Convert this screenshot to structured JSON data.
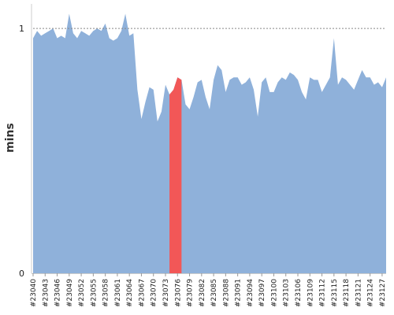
{
  "chart_data": {
    "type": "area",
    "title": "",
    "xlabel": "",
    "ylabel": "mins",
    "ylim": [
      0,
      1.1
    ],
    "yticks": [
      0,
      1
    ],
    "reference_line": {
      "value": 1,
      "style": "dotted"
    },
    "grid": false,
    "legend": "none",
    "colors": {
      "area": "#8fb1da",
      "highlight": "#f25757",
      "reference": "#888888",
      "axis": "#cccccc"
    },
    "x_tick_labels": [
      "#23040",
      "#23043",
      "#23046",
      "#23049",
      "#23052",
      "#23055",
      "#23058",
      "#23061",
      "#23064",
      "#23067",
      "#23070",
      "#23073",
      "#23076",
      "#23079",
      "#23082",
      "#23085",
      "#23088",
      "#23091",
      "#23094",
      "#23097",
      "#23100",
      "#23103",
      "#23106",
      "#23109",
      "#23112",
      "#23115",
      "#23118",
      "#23121",
      "#23124",
      "#23127"
    ],
    "x": [
      23040,
      23041,
      23042,
      23043,
      23044,
      23045,
      23046,
      23047,
      23048,
      23049,
      23050,
      23051,
      23052,
      23053,
      23054,
      23055,
      23056,
      23057,
      23058,
      23059,
      23060,
      23061,
      23062,
      23063,
      23064,
      23065,
      23066,
      23067,
      23068,
      23069,
      23070,
      23071,
      23072,
      23073,
      23074,
      23075,
      23076,
      23077,
      23078,
      23079,
      23080,
      23081,
      23082,
      23083,
      23084,
      23085,
      23086,
      23087,
      23088,
      23089,
      23090,
      23091,
      23092,
      23093,
      23094,
      23095,
      23096,
      23097,
      23098,
      23099,
      23100,
      23101,
      23102,
      23103,
      23104,
      23105,
      23106,
      23107,
      23108,
      23109,
      23110,
      23111,
      23112,
      23113,
      23114,
      23115,
      23116,
      23117,
      23118,
      23119,
      23120,
      23121,
      23122,
      23123,
      23124,
      23125,
      23126,
      23127,
      23128
    ],
    "series": [
      {
        "values": [
          0.96,
          0.99,
          0.97,
          0.98,
          0.99,
          1.0,
          0.96,
          0.97,
          0.96,
          1.06,
          0.98,
          0.96,
          0.99,
          0.98,
          0.97,
          0.99,
          1.0,
          0.99,
          1.02,
          0.96,
          0.95,
          0.96,
          0.99,
          1.06,
          0.97,
          0.98,
          0.75,
          0.63,
          0.7,
          0.76,
          0.75,
          0.62,
          0.66,
          0.77,
          0.73,
          0.75,
          0.8,
          0.79,
          0.69,
          0.67,
          0.72,
          0.78,
          0.79,
          0.72,
          0.67,
          0.79,
          0.85,
          0.83,
          0.74,
          0.79,
          0.8,
          0.8,
          0.77,
          0.78,
          0.8,
          0.75,
          0.64,
          0.78,
          0.8,
          0.74,
          0.74,
          0.78,
          0.8,
          0.79,
          0.82,
          0.81,
          0.79,
          0.74,
          0.71,
          0.8,
          0.79,
          0.79,
          0.74,
          0.77,
          0.8,
          0.96,
          0.77,
          0.8,
          0.79,
          0.77,
          0.75,
          0.79,
          0.83,
          0.8,
          0.8,
          0.77,
          0.78,
          0.76,
          0.8
        ]
      }
    ],
    "highlight_range": [
      23074,
      23077
    ]
  }
}
